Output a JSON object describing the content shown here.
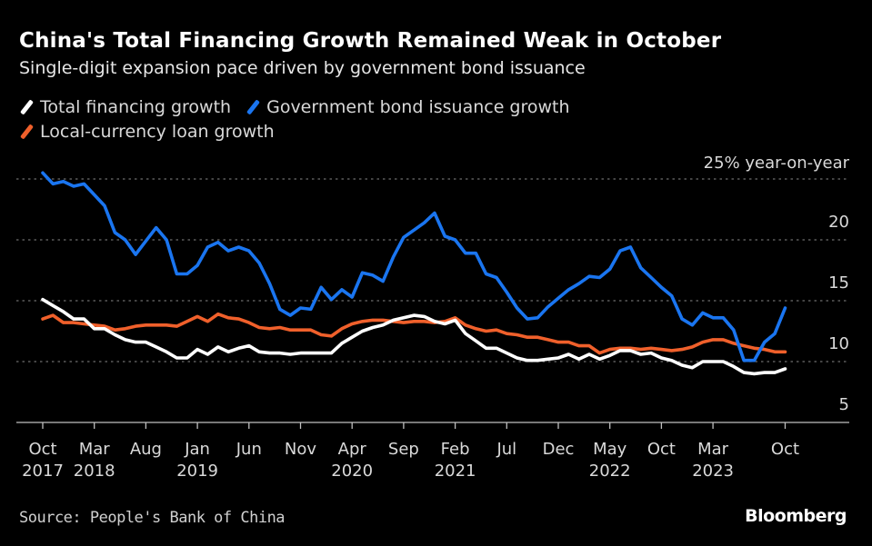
{
  "header": {
    "title": "China's Total Financing Growth Remained Weak in October",
    "subtitle": "Single-digit expansion pace driven by government bond issuance"
  },
  "footer": {
    "source": "Source: People's Bank of China",
    "brand": "Bloomberg"
  },
  "chart_data": {
    "type": "line",
    "title": "China's Total Financing Growth Remained Weak in October",
    "subtitle": "Single-digit expansion pace driven by government bond issuance",
    "xlabel": "",
    "ylabel": "% year-on-year",
    "y_unit_label": "25% year-on-year",
    "ylim": [
      5,
      25
    ],
    "yticks": [
      5,
      10,
      15,
      20,
      25
    ],
    "ytick_labels": [
      "5",
      "10",
      "15",
      "20",
      "25% year-on-year"
    ],
    "grid": true,
    "legend_position": "top-left",
    "x_start": "Oct 2017",
    "x_end": "Oct 2023",
    "x_frequency": "monthly",
    "xticks": [
      {
        "month_index": 0,
        "label": "Oct",
        "year": "2017"
      },
      {
        "month_index": 5,
        "label": "Mar",
        "year": "2018"
      },
      {
        "month_index": 10,
        "label": "Aug",
        "year": ""
      },
      {
        "month_index": 15,
        "label": "Jan",
        "year": "2019"
      },
      {
        "month_index": 20,
        "label": "Jun",
        "year": ""
      },
      {
        "month_index": 25,
        "label": "Nov",
        "year": ""
      },
      {
        "month_index": 30,
        "label": "Apr",
        "year": "2020"
      },
      {
        "month_index": 35,
        "label": "Sep",
        "year": ""
      },
      {
        "month_index": 40,
        "label": "Feb",
        "year": "2021"
      },
      {
        "month_index": 45,
        "label": "Jul",
        "year": ""
      },
      {
        "month_index": 50,
        "label": "Dec",
        "year": ""
      },
      {
        "month_index": 55,
        "label": "May",
        "year": "2022"
      },
      {
        "month_index": 60,
        "label": "Oct",
        "year": ""
      },
      {
        "month_index": 65,
        "label": "Mar",
        "year": "2023"
      },
      {
        "month_index": 72,
        "label": "Oct",
        "year": ""
      }
    ],
    "series": [
      {
        "name": "Total financing growth",
        "color": "#ffffff",
        "values": [
          15.1,
          14.6,
          14.1,
          13.5,
          13.5,
          12.7,
          12.7,
          12.2,
          11.8,
          11.6,
          11.6,
          11.2,
          10.8,
          10.3,
          10.3,
          11.0,
          10.6,
          11.2,
          10.8,
          11.1,
          11.3,
          10.8,
          10.7,
          10.7,
          10.6,
          10.7,
          10.7,
          10.7,
          10.7,
          11.5,
          12.0,
          12.5,
          12.8,
          13.0,
          13.4,
          13.6,
          13.8,
          13.7,
          13.3,
          13.1,
          13.4,
          12.3,
          11.7,
          11.1,
          11.1,
          10.7,
          10.3,
          10.1,
          10.1,
          10.2,
          10.3,
          10.6,
          10.2,
          10.6,
          10.2,
          10.5,
          10.9,
          10.9,
          10.6,
          10.7,
          10.3,
          10.1,
          9.7,
          9.5,
          10.0,
          10.0,
          10.0,
          9.6,
          9.1,
          9.0,
          9.1,
          9.1,
          9.4
        ]
      },
      {
        "name": "Government bond issuance growth",
        "color": "#1a75f0",
        "values": [
          25.5,
          24.6,
          24.8,
          24.4,
          24.6,
          23.7,
          22.8,
          20.6,
          20.0,
          18.8,
          19.9,
          21.0,
          20.0,
          17.2,
          17.2,
          17.9,
          19.4,
          19.8,
          19.1,
          19.4,
          19.1,
          18.1,
          16.4,
          14.3,
          13.8,
          14.4,
          14.3,
          16.1,
          15.1,
          15.9,
          15.3,
          17.3,
          17.1,
          16.6,
          18.6,
          20.2,
          20.8,
          21.4,
          22.2,
          20.3,
          20.0,
          18.9,
          18.9,
          17.2,
          16.9,
          15.7,
          14.4,
          13.5,
          13.6,
          14.5,
          15.2,
          15.9,
          16.4,
          17.0,
          16.9,
          17.6,
          19.1,
          19.4,
          17.7,
          16.9,
          16.1,
          15.4,
          13.5,
          13.0,
          14.0,
          13.6,
          13.6,
          12.6,
          10.1,
          10.1,
          11.6,
          12.3,
          14.4
        ]
      },
      {
        "name": "Local-currency loan growth",
        "color": "#f0602b",
        "values": [
          13.5,
          13.8,
          13.2,
          13.2,
          13.1,
          13.0,
          12.9,
          12.6,
          12.7,
          12.9,
          13.0,
          13.0,
          13.0,
          12.9,
          13.3,
          13.7,
          13.3,
          13.9,
          13.6,
          13.5,
          13.2,
          12.8,
          12.7,
          12.8,
          12.6,
          12.6,
          12.6,
          12.2,
          12.1,
          12.7,
          13.1,
          13.3,
          13.4,
          13.4,
          13.3,
          13.2,
          13.3,
          13.3,
          13.2,
          13.3,
          13.6,
          13.0,
          12.7,
          12.5,
          12.6,
          12.3,
          12.2,
          12.0,
          12.0,
          11.8,
          11.6,
          11.6,
          11.3,
          11.3,
          10.7,
          11.0,
          11.1,
          11.1,
          11.0,
          11.1,
          11.0,
          10.9,
          11.0,
          11.2,
          11.6,
          11.8,
          11.8,
          11.5,
          11.3,
          11.1,
          11.0,
          10.8,
          10.8
        ]
      }
    ]
  }
}
